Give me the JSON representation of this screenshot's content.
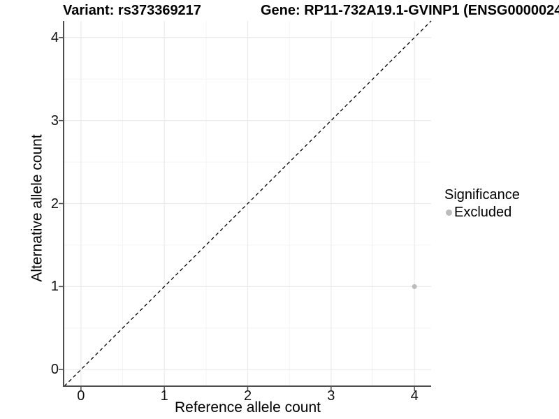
{
  "titles": {
    "variant": "Variant: rs373369217",
    "gene": "Gene: RP11-732A19.1-GVINP1 (ENSG0000024"
  },
  "axes": {
    "x_label": "Reference allele count",
    "y_label": "Alternative allele count"
  },
  "legend": {
    "title": "Significance",
    "items": [
      {
        "label": "Excluded",
        "color": "#bcbcbc"
      }
    ]
  },
  "colors": {
    "axis_line": "#4d4d4d",
    "tick_mark": "#4d4d4d",
    "grid_major": "#ebebeb",
    "grid_minor": "#f4f4f4",
    "identity_line": "#000000",
    "point": "#bcbcbc",
    "background": "#ffffff"
  },
  "chart_data": {
    "type": "scatter",
    "title_left": "Variant: rs373369217",
    "title_right": "Gene: RP11-732A19.1-GVINP1 (ENSG0000024",
    "xlabel": "Reference allele count",
    "ylabel": "Alternative allele count",
    "xlim": [
      -0.2,
      4.2
    ],
    "ylim": [
      -0.2,
      4.2
    ],
    "x_ticks": [
      0,
      1,
      2,
      3,
      4
    ],
    "y_ticks": [
      0,
      1,
      2,
      3,
      4
    ],
    "x_minor_ticks": [
      0.5,
      1.5,
      2.5,
      3.5
    ],
    "y_minor_ticks": [
      0.5,
      1.5,
      2.5,
      3.5
    ],
    "grid": true,
    "identity_line": {
      "style": "dashed",
      "from": -0.2,
      "to": 4.2
    },
    "series": [
      {
        "name": "Excluded",
        "color": "#bcbcbc",
        "point_radius": 3.5,
        "points": [
          {
            "x": 4,
            "y": 1
          }
        ]
      }
    ],
    "legend": {
      "title": "Significance",
      "position": "right",
      "entries": [
        "Excluded"
      ]
    }
  }
}
